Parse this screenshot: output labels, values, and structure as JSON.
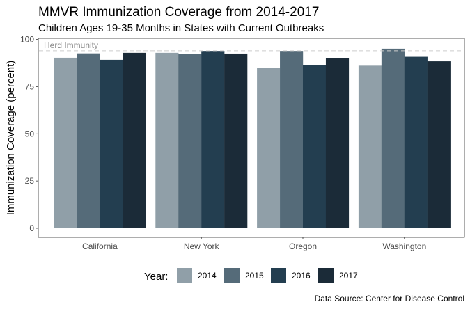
{
  "chart_data": {
    "type": "bar",
    "title": "MMVR Immunization Coverage from 2014-2017",
    "subtitle": "Children Ages 19-35 Months in States with Current Outbreaks",
    "ylabel": "Immunization Coverage (percent)",
    "xlabel": "",
    "ylim": [
      0,
      100
    ],
    "yticks": [
      0,
      25,
      50,
      75,
      100
    ],
    "grid": false,
    "categories": [
      "California",
      "New York",
      "Oregon",
      "Washington"
    ],
    "series": [
      {
        "name": "2014",
        "color": "#909fa8",
        "values": [
          90.3,
          92.9,
          84.8,
          86.1
        ]
      },
      {
        "name": "2015",
        "color": "#556b79",
        "values": [
          92.6,
          92.4,
          93.9,
          95.1
        ]
      },
      {
        "name": "2016",
        "color": "#233e50",
        "values": [
          89.2,
          93.9,
          86.5,
          90.8
        ]
      },
      {
        "name": "2017",
        "color": "#1b2b38",
        "values": [
          92.9,
          92.5,
          90.2,
          88.4
        ]
      }
    ],
    "reference_line": {
      "value": 94,
      "label": "Herd Immunity",
      "color": "#cccccc"
    },
    "legend": {
      "title": "Year:",
      "position": "bottom"
    },
    "caption": "Data Source: Center for Disease Control"
  }
}
